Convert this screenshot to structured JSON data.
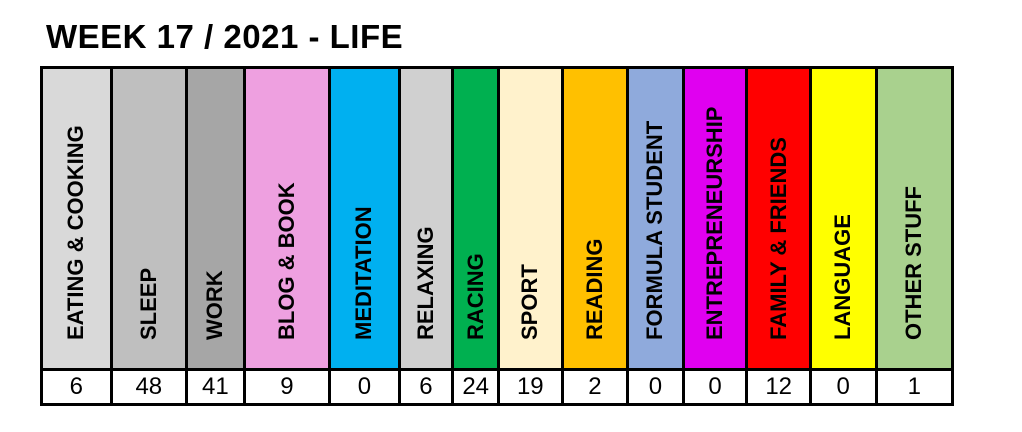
{
  "title": "WEEK 17 / 2021 - LIFE",
  "categories": [
    {
      "label": "EATING & COOKING",
      "value": "6",
      "color": "#d9d9d9"
    },
    {
      "label": "SLEEP",
      "value": "48",
      "color": "#bfbfbf"
    },
    {
      "label": "WORK",
      "value": "41",
      "color": "#a6a6a6"
    },
    {
      "label": "BLOG & BOOK",
      "value": "9",
      "color": "#eea0e0"
    },
    {
      "label": "MEDITATION",
      "value": "0",
      "color": "#00b0f0"
    },
    {
      "label": "RELAXING",
      "value": "6",
      "color": "#d0d0d0"
    },
    {
      "label": "RACING",
      "value": "24",
      "color": "#00b050"
    },
    {
      "label": "SPORT",
      "value": "19",
      "color": "#fff2cc"
    },
    {
      "label": "READING",
      "value": "2",
      "color": "#ffc000"
    },
    {
      "label": "FORMULA STUDENT",
      "value": "0",
      "color": "#8faadc"
    },
    {
      "label": "ENTREPRENEURSHIP",
      "value": "0",
      "color": "#e000f0"
    },
    {
      "label": "FAMILY & FRIENDS",
      "value": "12",
      "color": "#ff0000"
    },
    {
      "label": "LANGUAGE",
      "value": "0",
      "color": "#ffff00"
    },
    {
      "label": "OTHER STUFF",
      "value": "1",
      "color": "#a9d18e"
    }
  ]
}
